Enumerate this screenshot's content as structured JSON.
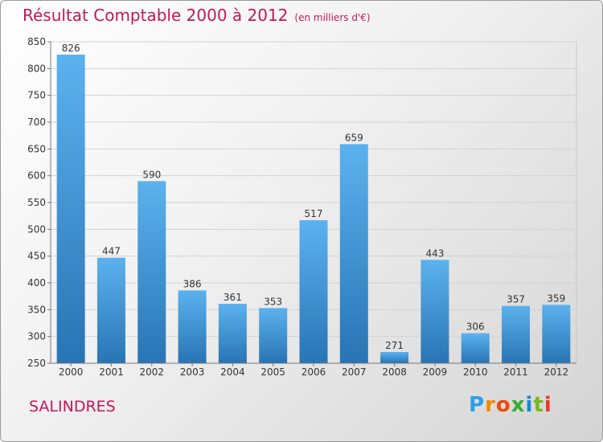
{
  "chart_data": {
    "type": "bar",
    "title": "Résultat Comptable 2000 à 2012",
    "subtitle": "(en milliers d'€)",
    "categories": [
      "2000",
      "2001",
      "2002",
      "2003",
      "2004",
      "2005",
      "2006",
      "2007",
      "2008",
      "2009",
      "2010",
      "2011",
      "2012"
    ],
    "values": [
      826,
      447,
      590,
      386,
      361,
      353,
      517,
      659,
      271,
      443,
      306,
      357,
      359
    ],
    "ylim": [
      250,
      850
    ],
    "yticks": [
      250,
      300,
      350,
      400,
      450,
      500,
      550,
      600,
      650,
      700,
      750,
      800,
      850
    ],
    "grid": true,
    "xlabel": "",
    "ylabel": ""
  },
  "location": "SALINDRES",
  "logo": {
    "letters": [
      "P",
      "r",
      "o",
      "x",
      "i",
      "t",
      "i"
    ],
    "colors": [
      "#2e9ee5",
      "#f08a00",
      "#e84c0c",
      "#3aa935",
      "#1a88cf",
      "#7bb61d",
      "#e73b2b"
    ]
  },
  "colors": {
    "title": "#c2185b",
    "bar_top": "#5cb2ee",
    "bar_bottom": "#2874b4",
    "grid": "#d2d2d2"
  }
}
